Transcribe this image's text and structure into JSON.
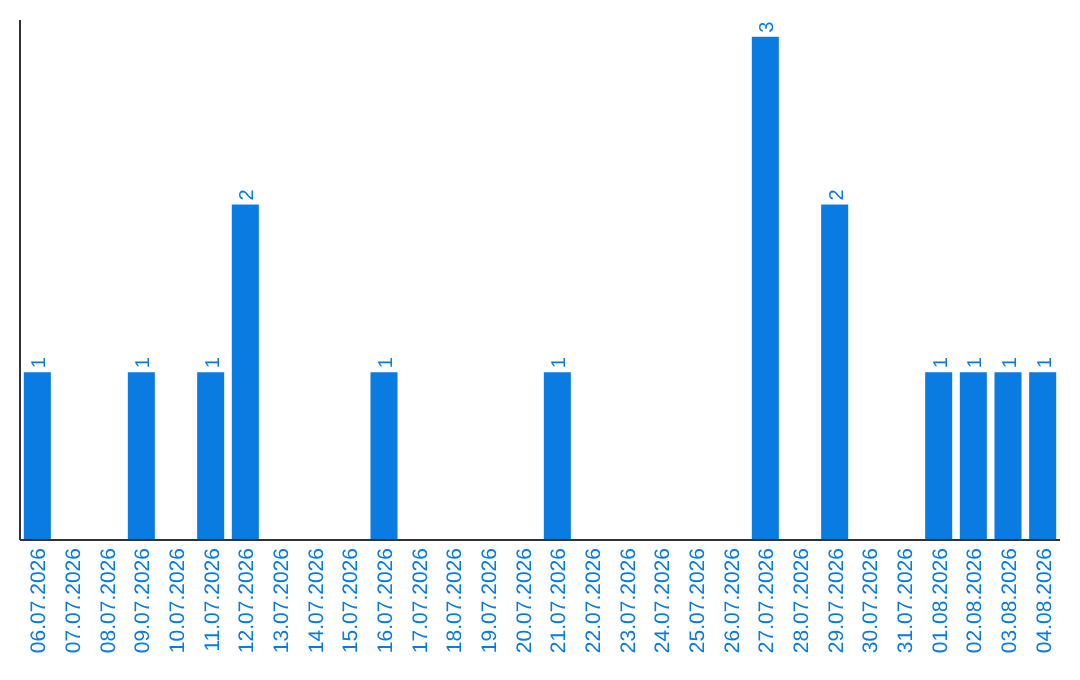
{
  "chart_data": {
    "type": "bar",
    "categories": [
      "06.07.2026",
      "07.07.2026",
      "08.07.2026",
      "09.07.2026",
      "10.07.2026",
      "11.07.2026",
      "12.07.2026",
      "13.07.2026",
      "14.07.2026",
      "15.07.2026",
      "16.07.2026",
      "17.07.2026",
      "18.07.2026",
      "19.07.2026",
      "20.07.2026",
      "21.07.2026",
      "22.07.2026",
      "23.07.2026",
      "24.07.2026",
      "25.07.2026",
      "26.07.2026",
      "27.07.2026",
      "28.07.2026",
      "29.07.2026",
      "30.07.2026",
      "31.07.2026",
      "01.08.2026",
      "02.08.2026",
      "03.08.2026",
      "04.08.2026"
    ],
    "values": [
      1,
      0,
      0,
      1,
      0,
      1,
      2,
      0,
      0,
      0,
      1,
      0,
      0,
      0,
      0,
      1,
      0,
      0,
      0,
      0,
      0,
      3,
      0,
      2,
      0,
      0,
      1,
      1,
      1,
      1
    ],
    "value_labels": [
      "1",
      null,
      null,
      "1",
      null,
      "1",
      "2",
      null,
      null,
      null,
      "1",
      null,
      null,
      null,
      null,
      "1",
      null,
      null,
      null,
      null,
      null,
      "3",
      null,
      "2",
      null,
      null,
      "1",
      "1",
      "1",
      "1"
    ],
    "color": "#0a7be0",
    "ylim": [
      0,
      3.1
    ]
  }
}
